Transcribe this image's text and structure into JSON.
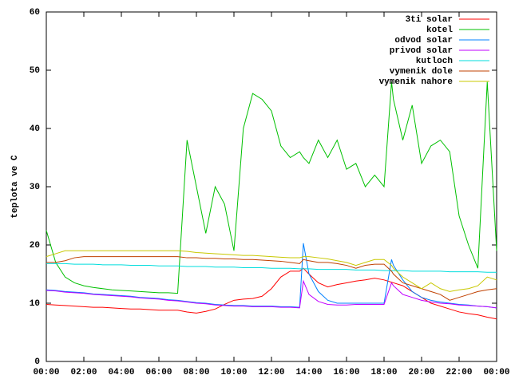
{
  "chart_data": {
    "type": "line",
    "ylabel": "teplota ve C",
    "x": [
      0,
      0.5,
      1,
      1.5,
      2,
      2.5,
      3,
      3.5,
      4,
      4.5,
      5,
      5.5,
      6,
      6.5,
      7,
      7.5,
      8,
      8.5,
      9,
      9.5,
      10,
      10.5,
      11,
      11.5,
      12,
      12.5,
      13,
      13.5,
      13.7,
      14,
      14.5,
      15,
      15.5,
      16,
      16.5,
      17,
      17.5,
      18,
      18.4,
      18.5,
      19,
      19.5,
      20,
      20.5,
      21,
      21.5,
      22,
      22.5,
      23,
      23.5,
      24
    ],
    "series": [
      {
        "name": "3ti solar",
        "color": "#ff0000",
        "values": [
          9.8,
          9.7,
          9.6,
          9.5,
          9.4,
          9.3,
          9.3,
          9.2,
          9.1,
          9.0,
          9.0,
          8.9,
          8.8,
          8.8,
          8.8,
          8.5,
          8.3,
          8.6,
          9.0,
          9.8,
          10.5,
          10.7,
          10.8,
          11.2,
          12.5,
          14.5,
          15.5,
          15.5,
          16,
          15,
          13.5,
          12.8,
          13.2,
          13.5,
          13.8,
          14.0,
          14.3,
          14.0,
          13.6,
          13.5,
          13,
          12,
          11,
          10,
          9.5,
          9,
          8.5,
          8.2,
          8,
          7.6,
          7.3
        ]
      },
      {
        "name": "kotel",
        "color": "#00c000",
        "values": [
          22.5,
          17,
          14.5,
          13.5,
          13,
          12.7,
          12.5,
          12.3,
          12.2,
          12.1,
          12,
          11.9,
          11.8,
          11.8,
          11.7,
          38,
          30,
          22,
          30,
          27,
          19,
          40,
          46,
          45,
          43,
          37,
          35,
          36,
          35,
          34,
          38,
          35,
          38,
          33,
          34,
          30,
          32,
          30,
          48,
          45,
          38,
          44,
          34,
          37,
          38,
          36,
          25,
          20,
          16,
          48,
          19
        ]
      },
      {
        "name": "odvod solar",
        "color": "#0080ff",
        "values": [
          12.3,
          12.2,
          12.0,
          11.9,
          11.8,
          11.6,
          11.5,
          11.4,
          11.3,
          11.2,
          11.0,
          10.9,
          10.8,
          10.6,
          10.5,
          10.3,
          10.1,
          10.0,
          9.8,
          9.7,
          9.6,
          9.6,
          9.5,
          9.5,
          9.5,
          9.4,
          9.4,
          9.3,
          20.3,
          15,
          12,
          10.5,
          10,
          10,
          10,
          10,
          10,
          10,
          17.5,
          16.5,
          14,
          12,
          11,
          10.5,
          10.2,
          10,
          9.8,
          9.7,
          9.5,
          9.4,
          9.2
        ]
      },
      {
        "name": "privod solar",
        "color": "#c000ff",
        "values": [
          12.2,
          12.1,
          11.9,
          11.8,
          11.7,
          11.5,
          11.4,
          11.3,
          11.2,
          11.1,
          10.9,
          10.8,
          10.7,
          10.5,
          10.4,
          10.2,
          10.0,
          9.9,
          9.7,
          9.6,
          9.5,
          9.5,
          9.4,
          9.4,
          9.4,
          9.3,
          9.3,
          9.2,
          13.8,
          11.5,
          10.3,
          9.8,
          9.7,
          9.7,
          9.8,
          9.8,
          9.8,
          9.8,
          13.5,
          13,
          11.5,
          11,
          10.5,
          10.2,
          10,
          9.9,
          9.7,
          9.6,
          9.5,
          9.4,
          9.2
        ]
      },
      {
        "name": "kutloch",
        "color": "#00dddd",
        "values": [
          16.8,
          16.8,
          16.8,
          16.7,
          16.7,
          16.7,
          16.6,
          16.6,
          16.6,
          16.5,
          16.5,
          16.5,
          16.4,
          16.4,
          16.4,
          16.3,
          16.3,
          16.3,
          16.2,
          16.2,
          16.2,
          16.1,
          16.1,
          16.1,
          16.0,
          16.0,
          16.0,
          15.9,
          15.9,
          15.9,
          15.8,
          15.8,
          15.8,
          15.8,
          15.7,
          15.7,
          15.7,
          15.6,
          15.6,
          15.6,
          15.6,
          15.5,
          15.5,
          15.5,
          15.5,
          15.4,
          15.4,
          15.4,
          15.4,
          15.3,
          15.3
        ]
      },
      {
        "name": "vymenik dole",
        "color": "#c04000",
        "values": [
          17,
          17,
          17.3,
          17.8,
          18,
          18,
          18,
          18,
          18,
          18,
          18,
          18,
          18,
          18,
          18,
          17.8,
          17.8,
          17.7,
          17.7,
          17.6,
          17.6,
          17.5,
          17.5,
          17.4,
          17.3,
          17.2,
          17,
          16.8,
          17.5,
          17.3,
          17,
          17,
          16.8,
          16.5,
          16,
          16.5,
          16.7,
          16.7,
          15.5,
          15,
          13.5,
          13,
          12.5,
          12,
          11.5,
          10.5,
          11,
          11.5,
          12,
          12.3,
          12.5
        ]
      },
      {
        "name": "vymenik nahore",
        "color": "#c8c800",
        "values": [
          18,
          18.5,
          19,
          19,
          19,
          19,
          19,
          19,
          19,
          19,
          19,
          19,
          19,
          19,
          19,
          18.9,
          18.7,
          18.6,
          18.5,
          18.4,
          18.3,
          18.2,
          18.2,
          18.1,
          18,
          17.9,
          17.8,
          17.8,
          18,
          18,
          17.8,
          17.6,
          17.3,
          17,
          16.5,
          17,
          17.5,
          17.5,
          16.5,
          16,
          14.5,
          13.5,
          12.5,
          13.5,
          12.5,
          12,
          12.3,
          12.5,
          13,
          14.5,
          14
        ]
      }
    ],
    "xlim": [
      0,
      24
    ],
    "xticks": [
      {
        "value": 0,
        "label": "00:00"
      },
      {
        "value": 2,
        "label": "02:00"
      },
      {
        "value": 4,
        "label": "04:00"
      },
      {
        "value": 6,
        "label": "06:00"
      },
      {
        "value": 8,
        "label": "08:00"
      },
      {
        "value": 10,
        "label": "10:00"
      },
      {
        "value": 12,
        "label": "12:00"
      },
      {
        "value": 14,
        "label": "14:00"
      },
      {
        "value": 16,
        "label": "16:00"
      },
      {
        "value": 18,
        "label": "18:00"
      },
      {
        "value": 20,
        "label": "20:00"
      },
      {
        "value": 22,
        "label": "22:00"
      },
      {
        "value": 24,
        "label": "00:00"
      }
    ],
    "ylim": [
      0,
      60
    ],
    "yticks": [
      0,
      10,
      20,
      30,
      40,
      50,
      60
    ],
    "legend": "top-right"
  }
}
